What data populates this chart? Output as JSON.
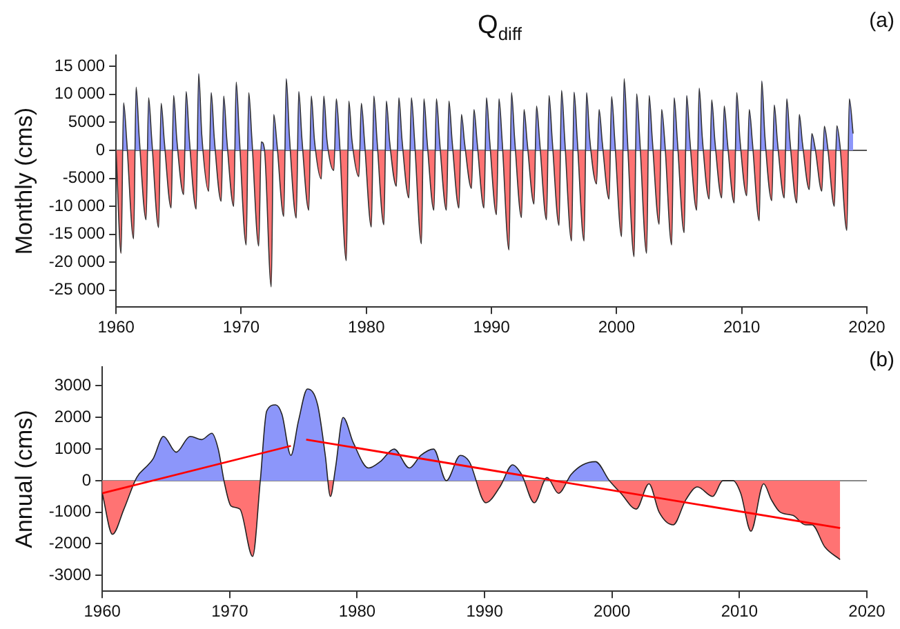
{
  "chart_data": [
    {
      "type": "area",
      "title": "Q$_{diff}$",
      "ylabel": "Monthly (cms)",
      "annotations": [
        "(a)"
      ],
      "xlim": [
        1960,
        2020
      ],
      "xticks": [
        1960,
        1970,
        1980,
        1990,
        2000,
        2010,
        2020
      ],
      "ylim": [
        -28000,
        17000
      ],
      "yticks": [
        {
          "value": 15000,
          "label": "15 000"
        },
        {
          "value": 10000,
          "label": "10 000"
        },
        5000,
        0,
        -5000,
        {
          "value": -10000,
          "label": "-10 000"
        },
        {
          "value": -15000,
          "label": "-15 000"
        },
        {
          "value": -20000,
          "label": "-20 000"
        },
        {
          "value": -25000,
          "label": "-25 000"
        }
      ],
      "ref_lines": [
        {
          "axis": "y",
          "value": 0,
          "color": "#555555"
        }
      ],
      "series": [
        {
          "type": "area",
          "color": "#333333",
          "colors": [
            "#8c96fa",
            "#ff7373",
            "#8c96fa",
            "#8c96fa",
            "#ff7373",
            "#8c96fa",
            "#8c96fa",
            "#ff7373",
            "#8c96fa",
            "#8c96fa",
            "#ff7373",
            "#8c96fa",
            "#8c96fa",
            "#ff7373",
            "#8c96fa",
            "#8c96fa",
            "#ff7373",
            "#8c96fa",
            "#8c96fa",
            "#ff7373",
            "#8c96fa",
            "#8c96fa",
            "#ff7373",
            "#8c96fa",
            "#8c96fa",
            "#ff7373",
            "#8c96fa",
            "#8c96fa",
            "#ff7373",
            "#8c96fa",
            "#8c96fa",
            "#ff7373",
            "#8c96fa",
            "#8c96fa",
            "#ff7373",
            "#8c96fa",
            "#8c96fa",
            "#ff7373",
            "#8c96fa",
            "#8c96fa",
            "#ff7373",
            "#8c96fa",
            "#8c96fa",
            "#ff7373",
            "#8c96fa",
            "#8c96fa",
            "#ff7373",
            "#8c96fa",
            "#8c96fa",
            "#ff7373",
            "#8c96fa",
            "#8c96fa",
            "#ff7373",
            "#8c96fa",
            "#8c96fa",
            "#ff7373",
            "#8c96fa",
            "#8c96fa",
            "#ff7373",
            "#8c96fa",
            "#8c96fa",
            "#ff7373",
            "#8c96fa",
            "#8c96fa",
            "#ff7373",
            "#8c96fa",
            "#8c96fa",
            "#ff7373",
            "#8c96fa",
            "#8c96fa",
            "#ff7373",
            "#8c96fa",
            "#8c96fa",
            "#ff7373",
            "#8c96fa",
            "#8c96fa",
            "#ff7373",
            "#8c96fa",
            "#8c96fa",
            "#ff7373",
            "#8c96fa",
            "#8c96fa",
            "#ff7373",
            "#8c96fa",
            "#8c96fa",
            "#ff7373",
            "#8c96fa",
            "#8c96fa",
            "#ff7373",
            "#8c96fa",
            "#8c96fa",
            "#ff7373",
            "#8c96fa",
            "#8c96fa",
            "#ff7373",
            "#8c96fa",
            "#8c96fa",
            "#ff7373",
            "#8c96fa",
            "#8c96fa",
            "#ff7373",
            "#8c96fa",
            "#8c96fa",
            "#ff7373",
            "#8c96fa",
            "#8c96fa",
            "#ff7373",
            "#8c96fa",
            "#8c96fa",
            "#ff7373",
            "#8c96fa",
            "#8c96fa",
            "#ff7373",
            "#8c96fa",
            "#8c96fa",
            "#ff7373",
            "#8c96fa",
            "#8c96fa",
            "#ff7373",
            "#8c96fa",
            "#8c96fa",
            "#ff7373",
            "#8c96fa",
            "#8c96fa",
            "#ff7373",
            "#8c96fa",
            "#8c96fa",
            "#ff7373",
            "#8c96fa",
            "#8c96fa",
            "#ff7373",
            "#8c96fa",
            "#8c96fa",
            "#ff7373",
            "#8c96fa",
            "#8c96fa",
            "#ff7373",
            "#8c96fa",
            "#8c96fa",
            "#ff7373",
            "#8c96fa",
            "#8c96fa",
            "#ff7373",
            "#8c96fa",
            "#8c96fa",
            "#ff7373",
            "#8c96fa",
            "#8c96fa",
            "#ff7373",
            "#8c96fa",
            "#8c96fa",
            "#ff7373",
            "#8c96fa",
            "#8c96fa",
            "#ff7373",
            "#8c96fa",
            "#8c96fa",
            "#ff7373",
            "#8c96fa",
            "#8c96fa",
            "#ff7373",
            "#8c96fa",
            "#8c96fa",
            "#ff7373",
            "#8c96fa",
            "#8c96fa",
            "#ff7373",
            "#8c96fa",
            "#8c96fa",
            "#ff7373",
            "#8c96fa",
            "#8c96fa",
            "#ff7373",
            "#8c96fa",
            "#8c96fa",
            "#ff7373",
            "#8c96fa",
            "#8c96fa"
          ],
          "x": [
            1960,
            1960.4,
            1960.6,
            1960.85,
            1961.4,
            1961.6,
            1961.85,
            1962.4,
            1962.6,
            1962.85,
            1963.4,
            1963.6,
            1963.85,
            1964.4,
            1964.6,
            1964.85,
            1965.4,
            1965.6,
            1965.85,
            1966.4,
            1966.6,
            1966.85,
            1967.4,
            1967.6,
            1967.85,
            1968.4,
            1968.6,
            1968.85,
            1969.4,
            1969.6,
            1969.85,
            1970.4,
            1970.6,
            1970.85,
            1971.4,
            1971.6,
            1971.85,
            1972.4,
            1972.6,
            1972.85,
            1973.4,
            1973.6,
            1973.85,
            1974.4,
            1974.6,
            1974.85,
            1975.4,
            1975.6,
            1975.85,
            1976.4,
            1976.6,
            1976.85,
            1977.4,
            1977.6,
            1977.85,
            1978.4,
            1978.6,
            1978.85,
            1979.4,
            1979.6,
            1979.85,
            1980.4,
            1980.6,
            1980.85,
            1981.4,
            1981.6,
            1981.85,
            1982.4,
            1982.6,
            1982.85,
            1983.4,
            1983.6,
            1983.85,
            1984.4,
            1984.6,
            1984.85,
            1985.4,
            1985.6,
            1985.85,
            1986.4,
            1986.6,
            1986.85,
            1987.4,
            1987.6,
            1987.85,
            1988.4,
            1988.6,
            1988.85,
            1989.4,
            1989.6,
            1989.85,
            1990.4,
            1990.6,
            1990.85,
            1991.4,
            1991.6,
            1991.85,
            1992.4,
            1992.6,
            1992.85,
            1993.4,
            1993.6,
            1993.85,
            1994.4,
            1994.6,
            1994.85,
            1995.4,
            1995.6,
            1995.85,
            1996.4,
            1996.6,
            1996.85,
            1997.4,
            1997.6,
            1997.85,
            1998.4,
            1998.6,
            1998.85,
            1999.4,
            1999.6,
            1999.85,
            2000.4,
            2000.6,
            2000.85,
            2001.4,
            2001.6,
            2001.85,
            2002.4,
            2002.6,
            2002.85,
            2003.4,
            2003.6,
            2003.85,
            2004.4,
            2004.6,
            2004.85,
            2005.4,
            2005.6,
            2005.85,
            2006.4,
            2006.6,
            2006.85,
            2007.4,
            2007.6,
            2007.85,
            2008.4,
            2008.6,
            2008.85,
            2009.4,
            2009.6,
            2009.85,
            2010.4,
            2010.6,
            2010.85,
            2011.4,
            2011.6,
            2011.85,
            2012.4,
            2012.6,
            2012.85,
            2013.4,
            2013.6,
            2013.85,
            2014.4,
            2014.6,
            2014.85,
            2015.4,
            2015.6,
            2015.85,
            2016.4,
            2016.6,
            2016.85,
            2017.4,
            2017.6,
            2017.85,
            2018.4,
            2018.6,
            2018.9
          ],
          "values": [
            0,
            -18400,
            8500,
            1700,
            -15800,
            11300,
            2300,
            -12400,
            9400,
            1900,
            -13800,
            8400,
            1700,
            -10300,
            9800,
            2000,
            -7900,
            10500,
            2100,
            -10500,
            13700,
            2700,
            -7300,
            10300,
            2100,
            -9100,
            9700,
            1900,
            -10000,
            12200,
            2400,
            -16900,
            10300,
            2100,
            -17100,
            1500,
            300,
            -24400,
            6400,
            1300,
            -11800,
            12800,
            2600,
            -12100,
            10500,
            2100,
            -10700,
            9700,
            1900,
            -5100,
            9700,
            1900,
            -3600,
            9200,
            1800,
            -19700,
            8800,
            1800,
            -4700,
            8400,
            1700,
            -13700,
            9700,
            1900,
            -13300,
            8800,
            1800,
            -6400,
            9400,
            1900,
            -8500,
            9400,
            1900,
            -16700,
            9200,
            1800,
            -10700,
            9200,
            1800,
            -10700,
            8800,
            1800,
            -10300,
            6400,
            1300,
            -6800,
            7300,
            1500,
            -10300,
            9400,
            1900,
            -11500,
            9200,
            1800,
            -17800,
            10300,
            2100,
            -12000,
            7300,
            1500,
            -9600,
            7900,
            1600,
            -12400,
            9800,
            2000,
            -13400,
            10700,
            2100,
            -16200,
            10400,
            2100,
            -16200,
            10300,
            2100,
            -6000,
            7300,
            1500,
            -8700,
            9600,
            1900,
            -15400,
            12800,
            2600,
            -19000,
            10100,
            2000,
            -18400,
            9800,
            2000,
            -13200,
            7300,
            1500,
            -16900,
            9400,
            1900,
            -14700,
            9800,
            2000,
            -10700,
            11100,
            2200,
            -8700,
            9000,
            1800,
            -8500,
            7900,
            1600,
            -9400,
            10300,
            2100,
            -8100,
            7300,
            1500,
            -12600,
            12400,
            2500,
            -9000,
            8100,
            1600,
            -8500,
            9200,
            1800,
            -9400,
            6400,
            1300,
            -7000,
            3000,
            600,
            -7300,
            4300,
            900,
            -10000,
            4400,
            900,
            -14300,
            9200,
            3000
          ]
        }
      ]
    },
    {
      "type": "area",
      "ylabel": "Annual (cms)",
      "annotations": [
        "(b)"
      ],
      "xlim": [
        1960,
        2020
      ],
      "xticks": [
        1960,
        1970,
        1980,
        1990,
        2000,
        2010,
        2020
      ],
      "ylim": [
        -3500,
        3600
      ],
      "yticks": [
        3000,
        2000,
        1000,
        0,
        -1000,
        -2000,
        -3000
      ],
      "ref_lines": [
        {
          "axis": "y",
          "value": 0,
          "color": "#888888"
        }
      ],
      "series": [
        {
          "type": "area",
          "color": "#222222",
          "colors": [
            "#ff7373",
            "#ff7373",
            "#ff7373",
            "#8c96fa",
            "#8c96fa",
            "#8c96fa",
            "#8c96fa",
            "#8c96fa",
            "#8c96fa",
            "#8c96fa",
            "#8c96fa",
            "#8c96fa",
            "#ff7373",
            "#ff7373",
            "#ff7373",
            "#ff7373",
            "#8c96fa",
            "#8c96fa",
            "#8c96fa",
            "#8c96fa",
            "#8c96fa",
            "#8c96fa",
            "#8c96fa",
            "#8c96fa",
            "#8c96fa",
            "#ff7373",
            "#8c96fa",
            "#8c96fa",
            "#8c96fa",
            "#8c96fa",
            "#8c96fa",
            "#8c96fa",
            "#8c96fa",
            "#8c96fa",
            "#8c96fa",
            "#8c96fa",
            "#8c96fa",
            "#8c96fa",
            "#ff7373",
            "#ff7373",
            "#8c96fa",
            "#8c96fa",
            "#ff7373",
            "#8c96fa",
            "#ff7373",
            "#8c96fa",
            "#8c96fa",
            "#8c96fa",
            "#8c96fa",
            "#ff7373",
            "#ff7373",
            "#ff7373",
            "#ff7373",
            "#ff7373",
            "#ff7373",
            "#ff7373",
            "#ff7373",
            "#8c96fa",
            "#8c96fa",
            "#ff7373",
            "#ff7373",
            "#ff7373",
            "#ff7373",
            "#ff7373",
            "#ff7373",
            "#ff7373",
            "#ff7373",
            "#ff7373",
            "#ff7373"
          ],
          "x": [
            1960,
            1960.8,
            1961.7,
            1962.7,
            1963.6,
            1964,
            1964.8,
            1965.8,
            1966.9,
            1967.8,
            1968.6,
            1969.1,
            1969.6,
            1970.1,
            1970.8,
            1971.8,
            1972.4,
            1972.9,
            1973.6,
            1974.1,
            1974.8,
            1975.4,
            1976.1,
            1976.9,
            1977.5,
            1977.9,
            1978.3,
            1978.9,
            1979.7,
            1980.9,
            1981.8,
            1982.9,
            1984.1,
            1985,
            1986,
            1987,
            1988.1,
            1988.8,
            1990.1,
            1991.2,
            1992.2,
            1992.9,
            1993.9,
            1994.9,
            1995.8,
            1996.8,
            1997.7,
            1998.7,
            1999.8,
            2000.7,
            2001.9,
            2002.9,
            2003.7,
            2004.8,
            2005.8,
            2006.7,
            2007.9,
            2008.7,
            2009.5,
            2010.1,
            2010.9,
            2011.9,
            2012.5,
            2013.2,
            2014.2,
            2015.2,
            2015.7,
            2016.7,
            2017.9
          ],
          "values": [
            -400,
            -1700,
            -900,
            100,
            500,
            700,
            1400,
            900,
            1400,
            1300,
            1500,
            1000,
            -100,
            -800,
            -900,
            -2400,
            0,
            2200,
            2400,
            2100,
            800,
            1900,
            2900,
            2400,
            800,
            -500,
            400,
            2000,
            1200,
            400,
            600,
            1000,
            400,
            800,
            1000,
            0,
            800,
            600,
            -700,
            -200,
            500,
            200,
            -700,
            100,
            -400,
            200,
            500,
            600,
            0,
            -400,
            -900,
            -100,
            -1000,
            -1400,
            -600,
            -200,
            -500,
            0,
            0,
            -400,
            -1600,
            -100,
            -600,
            -1000,
            -1100,
            -1400,
            -1400,
            -2100,
            -2500
          ]
        },
        {
          "type": "line",
          "color": "#ff0000",
          "x": [
            1960,
            1974.8
          ],
          "values": [
            -400,
            1100
          ]
        },
        {
          "type": "line",
          "color": "#ff0000",
          "x": [
            1976,
            2017.9
          ],
          "values": [
            1300,
            -1500
          ]
        }
      ]
    }
  ]
}
